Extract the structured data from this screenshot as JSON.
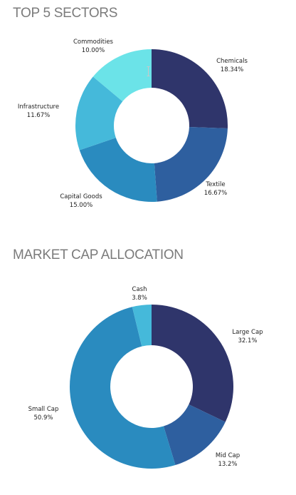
{
  "charts": {
    "sectors_title": "TOP 5 SECTORS",
    "mcap_title": "MARKET CAP ALLOCATION"
  },
  "colors": {
    "title": "#7b7b7b",
    "label": "#222222"
  },
  "chart_data": [
    {
      "type": "pie",
      "title": "TOP 5 SECTORS",
      "style": "donut",
      "slices": [
        {
          "label": "Chemicals",
          "value": 18.34,
          "value_label": "18.34%",
          "color": "#2f356b"
        },
        {
          "label": "Textile",
          "value": 16.67,
          "value_label": "16.67%",
          "color": "#2e5f9f"
        },
        {
          "label": "Capital Goods",
          "value": 15.0,
          "value_label": "15.00%",
          "color": "#2a8bbf"
        },
        {
          "label": "Infrastructure",
          "value": 11.67,
          "value_label": "11.67%",
          "color": "#45b9da"
        },
        {
          "label": "Commodities",
          "value": 10.0,
          "value_label": "10.00%",
          "color": "#6be3e8"
        }
      ]
    },
    {
      "type": "pie",
      "title": "MARKET CAP ALLOCATION",
      "style": "donut",
      "slices": [
        {
          "label": "Large Cap",
          "value": 32.1,
          "value_label": "32.1%",
          "color": "#2f356b"
        },
        {
          "label": "Mid Cap",
          "value": 13.2,
          "value_label": "13.2%",
          "color": "#2e5f9f"
        },
        {
          "label": "Small Cap",
          "value": 50.9,
          "value_label": "50.9%",
          "color": "#2a8bbf"
        },
        {
          "label": "Cash",
          "value": 3.8,
          "value_label": "3.8%",
          "color": "#45b9da"
        }
      ]
    }
  ]
}
